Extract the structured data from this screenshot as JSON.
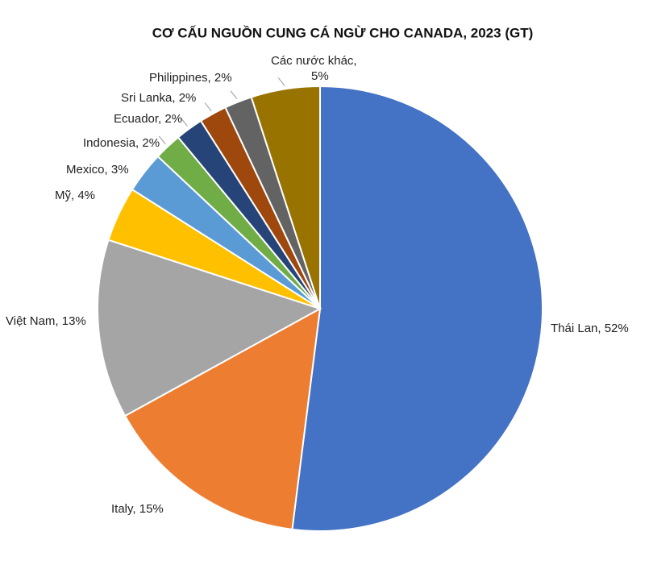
{
  "chart_data": {
    "type": "pie",
    "title": "CƠ CẤU NGUỒN CUNG CÁ NGỪ CHO CANADA, 2023 (GT)",
    "categories": [
      "Thái Lan",
      "Italy",
      "Việt Nam",
      "Mỹ",
      "Mexico",
      "Indonesia",
      "Ecuador",
      "Sri Lanka",
      "Philippines",
      "Các nước khác"
    ],
    "values": [
      52,
      15,
      13,
      4,
      3,
      2,
      2,
      2,
      2,
      5
    ],
    "value_labels": [
      "Thái Lan, 52%",
      "Italy, 15%",
      "Việt Nam, 13%",
      "Mỹ, 4%",
      "Mexico, 3%",
      "Indonesia, 2%",
      "Ecuador, 2%",
      "Sri Lanka, 2%",
      "Philippines, 2%",
      "Các nước khác, 5%"
    ],
    "colors": [
      "#4472c4",
      "#ed7d31",
      "#a5a5a5",
      "#ffc000",
      "#5b9bd5",
      "#70ad47",
      "#264478",
      "#9e480e",
      "#636363",
      "#997300"
    ]
  }
}
